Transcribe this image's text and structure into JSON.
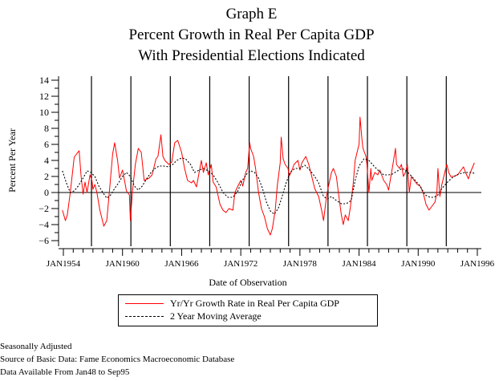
{
  "titles": [
    "Graph E",
    "Percent Growth in Real Per Capita GDP",
    "With Presidential Elections Indicated"
  ],
  "footer": [
    "Seasonally Adjusted",
    "Source of Basic Data: Fame Economics Macroeconomic Database",
    "Data Available From Jan48 to Sep95"
  ],
  "colors": {
    "growth": "#ff0000",
    "moving_average": "#000000",
    "axis": "#000000"
  },
  "chart_data": {
    "type": "line",
    "title": "Graph E — Percent Growth in Real Per Capita GDP With Presidential Elections Indicated",
    "xlabel": "Date of Observation",
    "ylabel": "Percent Per Year",
    "xlim": [
      1953.9,
      1996
    ],
    "ylim": [
      -6,
      14
    ],
    "yticks": [
      -6,
      -4,
      -2,
      0,
      2,
      4,
      6,
      8,
      10,
      12,
      14
    ],
    "xticks": [
      {
        "value": 1954,
        "label": "JAN1954"
      },
      {
        "value": 1960,
        "label": "JAN1960"
      },
      {
        "value": 1966,
        "label": "JAN1966"
      },
      {
        "value": 1972,
        "label": "JAN1972"
      },
      {
        "value": 1978,
        "label": "JAN1978"
      },
      {
        "value": 1984,
        "label": "JAN1984"
      },
      {
        "value": 1990,
        "label": "JAN1990"
      },
      {
        "value": 1996,
        "label": "JAN1996"
      }
    ],
    "reference_line": 0,
    "election_lines": [
      1956.85,
      1960.85,
      1964.85,
      1968.85,
      1972.85,
      1976.85,
      1980.85,
      1984.85,
      1988.85,
      1992.85
    ],
    "legend": {
      "placement": "bottom-center"
    },
    "series": [
      {
        "name": "Yr/Yr Growth Rate in Real Per Capita GDP",
        "style": "solid",
        "color": "#ff0000",
        "points": [
          [
            1953.9,
            -2.2
          ],
          [
            1954.2,
            -3.5
          ],
          [
            1954.4,
            -2.8
          ],
          [
            1954.7,
            0
          ],
          [
            1955.1,
            4.4
          ],
          [
            1955.4,
            4.9
          ],
          [
            1955.6,
            5.2
          ],
          [
            1955.8,
            2.0
          ],
          [
            1956.0,
            -0.2
          ],
          [
            1956.2,
            1.3
          ],
          [
            1956.4,
            0
          ],
          [
            1956.7,
            2.2
          ],
          [
            1956.9,
            1.5
          ],
          [
            1957.0,
            0.4
          ],
          [
            1957.2,
            1.0
          ],
          [
            1957.4,
            0
          ],
          [
            1957.7,
            -2.2
          ],
          [
            1958.1,
            -4.2
          ],
          [
            1958.4,
            -3.5
          ],
          [
            1958.7,
            0.5
          ],
          [
            1959.0,
            4.8
          ],
          [
            1959.2,
            6.2
          ],
          [
            1959.5,
            4.0
          ],
          [
            1959.7,
            1.8
          ],
          [
            1960.0,
            2.8
          ],
          [
            1960.2,
            1.5
          ],
          [
            1960.4,
            0.2
          ],
          [
            1960.7,
            -0.3
          ],
          [
            1960.8,
            -3.5
          ],
          [
            1961.0,
            0
          ],
          [
            1961.3,
            3.5
          ],
          [
            1961.6,
            5.5
          ],
          [
            1961.9,
            5.0
          ],
          [
            1962.2,
            1.5
          ],
          [
            1962.7,
            1.8
          ],
          [
            1963.0,
            2.2
          ],
          [
            1963.4,
            4.2
          ],
          [
            1963.6,
            4.5
          ],
          [
            1963.9,
            7.2
          ],
          [
            1964.1,
            4.5
          ],
          [
            1964.3,
            4.0
          ],
          [
            1964.7,
            3.5
          ],
          [
            1965.0,
            3.8
          ],
          [
            1965.3,
            6.2
          ],
          [
            1965.6,
            6.5
          ],
          [
            1966.0,
            5.0
          ],
          [
            1966.3,
            3.0
          ],
          [
            1966.6,
            1.5
          ],
          [
            1967.0,
            1.2
          ],
          [
            1967.2,
            1.5
          ],
          [
            1967.5,
            0.7
          ],
          [
            1968.0,
            4.0
          ],
          [
            1968.2,
            2.5
          ],
          [
            1968.5,
            3.7
          ],
          [
            1968.7,
            2.2
          ],
          [
            1969.0,
            3.5
          ],
          [
            1969.2,
            1.3
          ],
          [
            1969.5,
            0.7
          ],
          [
            1969.9,
            -1.5
          ],
          [
            1970.2,
            -2.2
          ],
          [
            1970.5,
            -2.5
          ],
          [
            1970.8,
            -2.0
          ],
          [
            1971.2,
            -2.2
          ],
          [
            1971.4,
            0
          ],
          [
            1971.7,
            0.8
          ],
          [
            1972.0,
            1.5
          ],
          [
            1972.2,
            0.8
          ],
          [
            1972.5,
            2.5
          ],
          [
            1972.7,
            3.0
          ],
          [
            1972.9,
            6.2
          ],
          [
            1973.0,
            5.5
          ],
          [
            1973.3,
            4.5
          ],
          [
            1973.5,
            3.0
          ],
          [
            1973.8,
            0
          ],
          [
            1974.1,
            -2.0
          ],
          [
            1974.4,
            -3.0
          ],
          [
            1974.7,
            -4.5
          ],
          [
            1975.0,
            -5.3
          ],
          [
            1975.2,
            -4.5
          ],
          [
            1975.5,
            -2.2
          ],
          [
            1975.7,
            0.8
          ],
          [
            1976.0,
            3.7
          ],
          [
            1976.1,
            6.9
          ],
          [
            1976.3,
            4.2
          ],
          [
            1976.5,
            3.5
          ],
          [
            1976.8,
            3.0
          ],
          [
            1976.9,
            2.0
          ],
          [
            1977.2,
            2.8
          ],
          [
            1977.4,
            3.5
          ],
          [
            1977.8,
            4.0
          ],
          [
            1978.0,
            2.8
          ],
          [
            1978.2,
            3.7
          ],
          [
            1978.6,
            4.5
          ],
          [
            1978.9,
            3.5
          ],
          [
            1979.2,
            2.0
          ],
          [
            1979.5,
            0.5
          ],
          [
            1979.9,
            -0.5
          ],
          [
            1980.2,
            -2.2
          ],
          [
            1980.4,
            -3.5
          ],
          [
            1980.7,
            -0.5
          ],
          [
            1980.9,
            0.8
          ],
          [
            1981.2,
            2.5
          ],
          [
            1981.4,
            3.0
          ],
          [
            1981.7,
            2.0
          ],
          [
            1981.9,
            0
          ],
          [
            1982.2,
            -2.8
          ],
          [
            1982.4,
            -4.0
          ],
          [
            1982.6,
            -2.8
          ],
          [
            1982.9,
            -3.5
          ],
          [
            1983.1,
            -2.0
          ],
          [
            1983.4,
            1.0
          ],
          [
            1983.6,
            4.0
          ],
          [
            1983.9,
            5.5
          ],
          [
            1984.0,
            6.0
          ],
          [
            1984.1,
            9.4
          ],
          [
            1984.3,
            6.5
          ],
          [
            1984.4,
            5.5
          ],
          [
            1984.7,
            4.5
          ],
          [
            1984.8,
            3.5
          ],
          [
            1985.0,
            0
          ],
          [
            1985.2,
            3.0
          ],
          [
            1985.3,
            1.5
          ],
          [
            1985.6,
            2.5
          ],
          [
            1985.9,
            2.2
          ],
          [
            1986.1,
            2.8
          ],
          [
            1986.5,
            1.5
          ],
          [
            1986.8,
            1.0
          ],
          [
            1987.0,
            0.3
          ],
          [
            1987.3,
            2.5
          ],
          [
            1987.5,
            4.0
          ],
          [
            1987.7,
            5.5
          ],
          [
            1987.8,
            3.5
          ],
          [
            1988.1,
            3.0
          ],
          [
            1988.3,
            3.5
          ],
          [
            1988.5,
            2.0
          ],
          [
            1988.7,
            2.5
          ],
          [
            1988.9,
            3.5
          ],
          [
            1989.1,
            0
          ],
          [
            1989.3,
            2.0
          ],
          [
            1989.6,
            1.5
          ],
          [
            1989.9,
            1.0
          ],
          [
            1990.2,
            0.8
          ],
          [
            1990.5,
            0
          ],
          [
            1990.8,
            -1.5
          ],
          [
            1991.1,
            -2.2
          ],
          [
            1991.4,
            -1.7
          ],
          [
            1991.7,
            -1.2
          ],
          [
            1991.9,
            0
          ],
          [
            1992.0,
            3.0
          ],
          [
            1992.2,
            -0.5
          ],
          [
            1992.4,
            1.0
          ],
          [
            1992.6,
            2.0
          ],
          [
            1992.9,
            3.5
          ],
          [
            1993.1,
            2.5
          ],
          [
            1993.3,
            2.0
          ],
          [
            1993.6,
            2.0
          ],
          [
            1994.0,
            2.2
          ],
          [
            1994.3,
            2.7
          ],
          [
            1994.6,
            3.2
          ],
          [
            1994.8,
            2.5
          ],
          [
            1995.1,
            1.7
          ],
          [
            1995.3,
            2.5
          ],
          [
            1995.7,
            3.7
          ]
        ]
      },
      {
        "name": "2 Year Moving Average",
        "style": "dashed",
        "color": "#000000",
        "points": [
          [
            1953.9,
            2.7
          ],
          [
            1954.3,
            1.2
          ],
          [
            1954.7,
            0
          ],
          [
            1955.1,
            0.2
          ],
          [
            1955.5,
            0.8
          ],
          [
            1956.0,
            1.8
          ],
          [
            1956.4,
            2.7
          ],
          [
            1956.8,
            2.5
          ],
          [
            1957.2,
            2.0
          ],
          [
            1957.6,
            0.8
          ],
          [
            1958.0,
            0
          ],
          [
            1958.4,
            -0.7
          ],
          [
            1958.8,
            -0.3
          ],
          [
            1959.2,
            0.5
          ],
          [
            1959.6,
            1.2
          ],
          [
            1960.0,
            2.0
          ],
          [
            1960.4,
            2.5
          ],
          [
            1960.8,
            2.0
          ],
          [
            1961.2,
            0.8
          ],
          [
            1961.6,
            0.3
          ],
          [
            1962.0,
            0.8
          ],
          [
            1962.5,
            1.8
          ],
          [
            1962.9,
            2.5
          ],
          [
            1963.3,
            3.0
          ],
          [
            1963.7,
            3.3
          ],
          [
            1964.2,
            3.3
          ],
          [
            1964.7,
            3.2
          ],
          [
            1965.1,
            3.5
          ],
          [
            1965.5,
            4.0
          ],
          [
            1966.0,
            4.3
          ],
          [
            1966.4,
            4.2
          ],
          [
            1966.9,
            3.5
          ],
          [
            1967.3,
            2.5
          ],
          [
            1967.8,
            2.8
          ],
          [
            1968.2,
            3.0
          ],
          [
            1968.7,
            2.7
          ],
          [
            1969.2,
            2.2
          ],
          [
            1969.7,
            1.2
          ],
          [
            1970.2,
            0
          ],
          [
            1970.7,
            -0.6
          ],
          [
            1971.2,
            -0.6
          ],
          [
            1971.7,
            0.2
          ],
          [
            1972.1,
            1.4
          ],
          [
            1972.6,
            2.3
          ],
          [
            1973.0,
            2.7
          ],
          [
            1973.4,
            2.5
          ],
          [
            1973.8,
            1.8
          ],
          [
            1974.2,
            0.5
          ],
          [
            1974.6,
            -1.2
          ],
          [
            1975.0,
            -2.3
          ],
          [
            1975.4,
            -2.7
          ],
          [
            1975.8,
            -2.0
          ],
          [
            1976.2,
            -0.5
          ],
          [
            1976.6,
            1.2
          ],
          [
            1977.0,
            2.5
          ],
          [
            1977.5,
            3.0
          ],
          [
            1978.0,
            3.0
          ],
          [
            1978.5,
            3.4
          ],
          [
            1979.0,
            2.8
          ],
          [
            1979.5,
            2.0
          ],
          [
            1979.9,
            1.2
          ],
          [
            1980.4,
            -0.5
          ],
          [
            1980.8,
            -0.8
          ],
          [
            1981.2,
            -0.5
          ],
          [
            1981.7,
            -1.0
          ],
          [
            1982.2,
            -1.4
          ],
          [
            1982.7,
            -1.4
          ],
          [
            1983.2,
            -1.0
          ],
          [
            1983.6,
            1.5
          ],
          [
            1984.0,
            3.3
          ],
          [
            1984.5,
            4.2
          ],
          [
            1985.0,
            4.0
          ],
          [
            1985.5,
            3.3
          ],
          [
            1986.0,
            2.7
          ],
          [
            1986.5,
            2.2
          ],
          [
            1987.0,
            2.2
          ],
          [
            1987.4,
            2.3
          ],
          [
            1987.9,
            2.7
          ],
          [
            1988.4,
            3.0
          ],
          [
            1988.8,
            2.7
          ],
          [
            1989.2,
            2.2
          ],
          [
            1989.7,
            1.5
          ],
          [
            1990.2,
            0.8
          ],
          [
            1990.7,
            -0.3
          ],
          [
            1991.2,
            -0.6
          ],
          [
            1991.6,
            -0.6
          ],
          [
            1992.0,
            -0.3
          ],
          [
            1992.4,
            0.5
          ],
          [
            1992.9,
            1.2
          ],
          [
            1993.4,
            1.8
          ],
          [
            1993.9,
            2.2
          ],
          [
            1994.4,
            2.4
          ],
          [
            1994.8,
            2.5
          ],
          [
            1995.3,
            2.5
          ],
          [
            1995.7,
            2.4
          ]
        ]
      }
    ]
  }
}
